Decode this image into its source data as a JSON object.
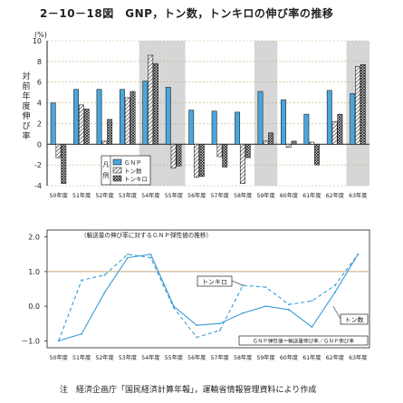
{
  "figure": {
    "title": "2－10－18図　GNP，トン数，トンキロの伸び率の推移",
    "note": "注　経済企画庁「国民経済計算年報」，運輸省情報管理資料により作成"
  },
  "colors": {
    "gnp": "#4aa6dc",
    "line": "#3a9ad6",
    "grid": "#c9a97a",
    "shade": "#d6d6d6",
    "ink": "#222222"
  },
  "chart_data": [
    {
      "type": "bar",
      "categories": [
        "50年度",
        "51年度",
        "52年度",
        "53年度",
        "54年度",
        "55年度",
        "56年度",
        "57年度",
        "58年度",
        "59年度",
        "60年度",
        "61年度",
        "62年度",
        "63年度"
      ],
      "ylim": [
        -4,
        10
      ],
      "yticks": [
        -4,
        -2,
        0,
        2,
        4,
        6,
        8,
        10
      ],
      "unit_label": "(%)",
      "ylabel": "対前年度伸び率",
      "legend_title": "凡例",
      "shaded_categories": [
        "54年度",
        "55年度",
        "59年度",
        "63年度"
      ],
      "series": [
        {
          "name": "ＧＮＰ",
          "pattern": "solid",
          "values": [
            4.0,
            5.3,
            5.3,
            5.3,
            6.1,
            5.5,
            3.3,
            3.2,
            3.1,
            5.1,
            4.3,
            2.9,
            5.2,
            4.9
          ]
        },
        {
          "name": "トン数",
          "pattern": "hatch",
          "values": [
            -1.3,
            3.8,
            0.3,
            4.5,
            8.6,
            -2.3,
            -3.2,
            -1.2,
            -3.8,
            0.3,
            -0.3,
            0.2,
            2.2,
            7.5
          ]
        },
        {
          "name": "トンキロ",
          "pattern": "cross",
          "values": [
            -3.8,
            3.4,
            2.4,
            5.1,
            7.8,
            -2.1,
            -3.1,
            -2.2,
            -1.3,
            1.1,
            0.3,
            -2.0,
            2.9,
            7.7
          ]
        }
      ]
    },
    {
      "type": "line",
      "title": "（輸送量の伸び率に対するＧＮＰ弾性値の推移）",
      "categories": [
        "50年度",
        "51年度",
        "52年度",
        "53年度",
        "54年度",
        "55年度",
        "56年度",
        "57年度",
        "58年度",
        "59年度",
        "60年度",
        "61年度",
        "62年度",
        "63年度"
      ],
      "ylim": [
        -1.2,
        2.2
      ],
      "yticks": [
        -1.0,
        0.0,
        1.0,
        2.0
      ],
      "ytick_labels": [
        "－1.0",
        "0.0",
        "1.0",
        "2.0"
      ],
      "legend_note": "ＧＮＰ弾性値＝輸送量伸び率／ＧＮＰ伸び率",
      "series": [
        {
          "name": "トン数",
          "style": "solid",
          "values": [
            -1.0,
            -0.8,
            0.4,
            1.4,
            1.5,
            0.0,
            -0.55,
            -0.5,
            -0.2,
            0.0,
            -0.1,
            -0.6,
            0.4,
            1.5
          ]
        },
        {
          "name": "トンキロ",
          "style": "dashed",
          "values": [
            -1.0,
            0.75,
            0.9,
            1.5,
            1.4,
            -0.05,
            -0.9,
            -0.7,
            0.6,
            0.55,
            0.05,
            0.15,
            0.6,
            1.5
          ]
        }
      ]
    }
  ]
}
